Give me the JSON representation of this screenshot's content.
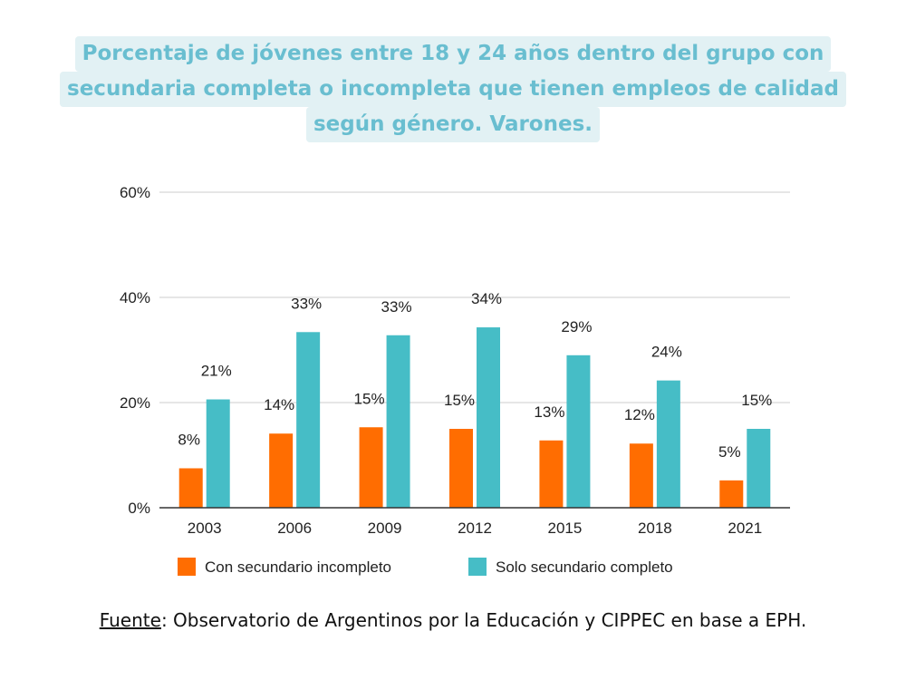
{
  "title_lines": [
    "Porcentaje de jóvenes entre 18 y 24 años dentro del grupo con",
    "secundaria completa o incompleta que tienen  empleos de calidad",
    "según género. Varones."
  ],
  "source": {
    "label": "Fuente",
    "text": ": Observatorio de Argentinos por la Educación y CIPPEC en base a EPH."
  },
  "chart_data": {
    "type": "bar",
    "categories": [
      "2003",
      "2006",
      "2009",
      "2012",
      "2015",
      "2018",
      "2021"
    ],
    "series": [
      {
        "name": "Con secundario incompleto",
        "color": "#ff6d01",
        "values": [
          7.5,
          14.1,
          15.3,
          15.0,
          12.8,
          12.2,
          5.2
        ],
        "labels": [
          "8%",
          "14%",
          "15%",
          "15%",
          "13%",
          "12%",
          "5%"
        ]
      },
      {
        "name": "Solo secundario completo",
        "color": "#46bdc6",
        "values": [
          20.6,
          33.4,
          32.8,
          34.3,
          29.0,
          24.2,
          15.0
        ],
        "labels": [
          "21%",
          "33%",
          "33%",
          "34%",
          "29%",
          "24%",
          "15%"
        ]
      }
    ],
    "yticks": [
      {
        "value": 0,
        "label": "0%"
      },
      {
        "value": 20,
        "label": "20%"
      },
      {
        "value": 40,
        "label": "40%"
      },
      {
        "value": 60,
        "label": "60%"
      }
    ],
    "ylim": [
      0,
      60
    ],
    "grid": true,
    "legend": "bottom"
  }
}
